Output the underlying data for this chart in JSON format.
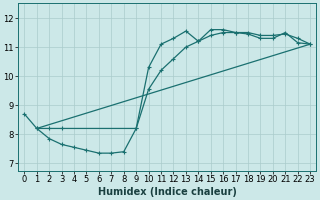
{
  "title": "",
  "xlabel": "Humidex (Indice chaleur)",
  "ylabel": "",
  "bg_color": "#cce8e8",
  "grid_color": "#aacccc",
  "line_color": "#1a7070",
  "xlim": [
    -0.5,
    23.5
  ],
  "ylim": [
    6.75,
    12.5
  ],
  "xticks": [
    0,
    1,
    2,
    3,
    4,
    5,
    6,
    7,
    8,
    9,
    10,
    11,
    12,
    13,
    14,
    15,
    16,
    17,
    18,
    19,
    20,
    21,
    22,
    23
  ],
  "yticks": [
    7,
    8,
    9,
    10,
    11,
    12
  ],
  "line1_x": [
    0,
    1,
    2,
    3,
    4,
    5,
    6,
    7,
    8,
    9,
    10,
    11,
    12,
    13,
    14,
    15,
    16,
    17,
    18,
    19,
    20,
    21,
    22,
    23
  ],
  "line1_y": [
    8.7,
    8.2,
    7.85,
    7.65,
    7.55,
    7.45,
    7.35,
    7.35,
    7.4,
    8.2,
    10.3,
    11.1,
    11.3,
    11.55,
    11.2,
    11.6,
    11.6,
    11.5,
    11.45,
    11.3,
    11.3,
    11.5,
    11.15,
    11.1
  ],
  "line2_x": [
    1,
    2,
    3,
    9,
    10,
    11,
    12,
    13,
    14,
    15,
    16,
    17,
    18,
    19,
    20,
    21,
    22,
    23
  ],
  "line2_y": [
    8.2,
    8.2,
    8.2,
    8.2,
    9.55,
    10.2,
    10.6,
    11.0,
    11.2,
    11.4,
    11.5,
    11.5,
    11.5,
    11.4,
    11.4,
    11.45,
    11.3,
    11.1
  ],
  "line3_x": [
    1,
    23
  ],
  "line3_y": [
    8.2,
    11.1
  ]
}
